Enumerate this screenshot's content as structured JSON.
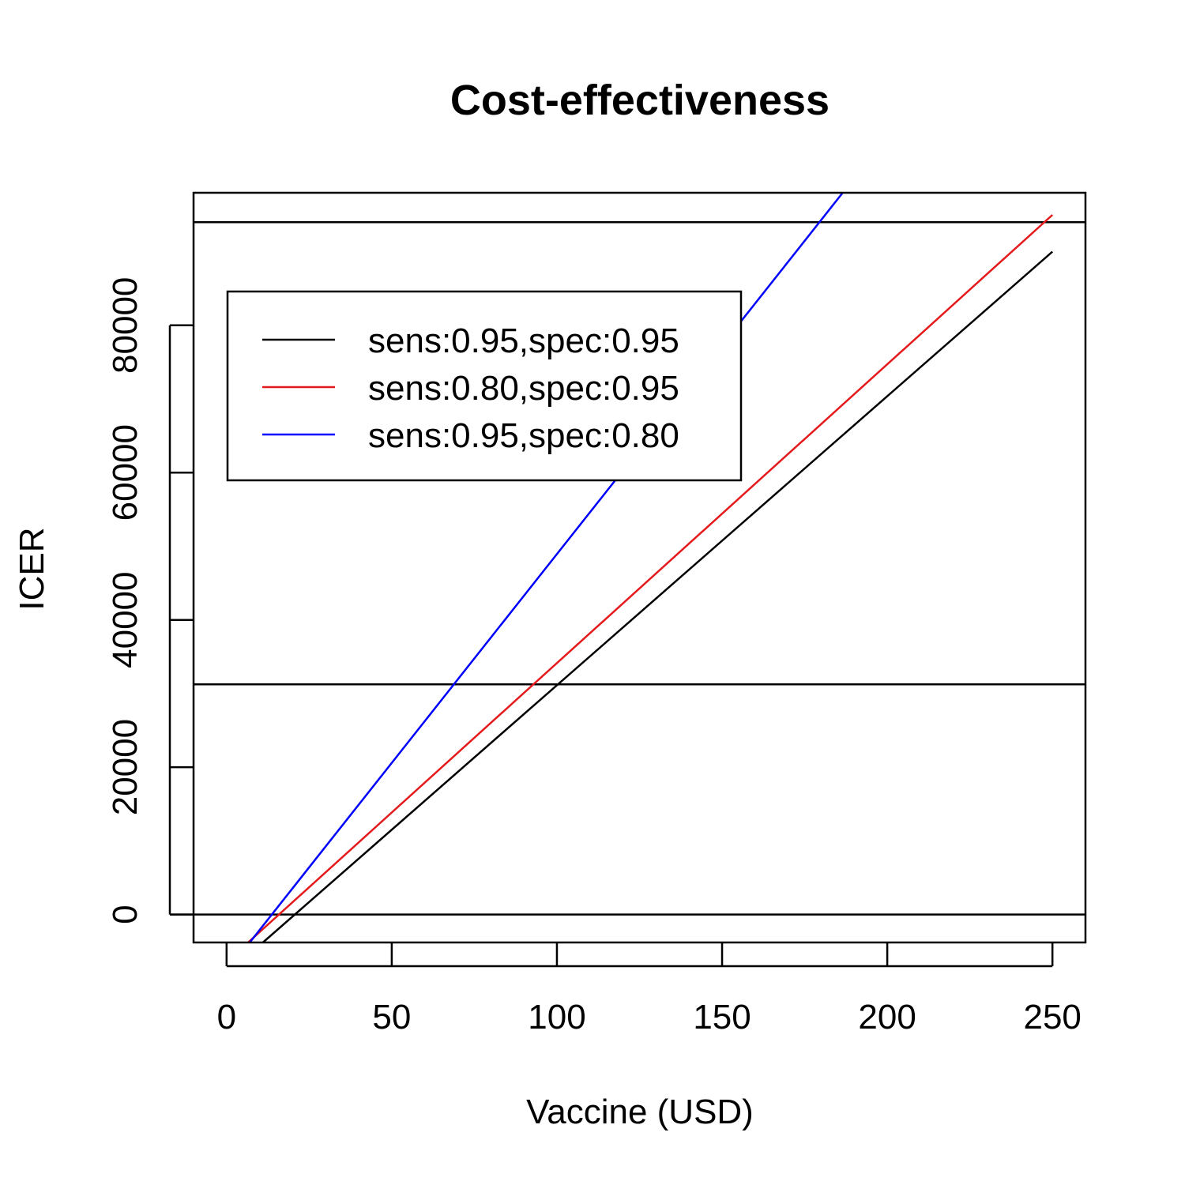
{
  "chart_data": {
    "type": "line",
    "title": "Cost-effectiveness",
    "xlabel": "Vaccine (USD)",
    "ylabel": "ICER",
    "xlim": [
      -10,
      260
    ],
    "ylim": [
      -3800,
      98000
    ],
    "x_ticks": [
      0,
      50,
      100,
      150,
      200,
      250
    ],
    "x_tick_labels": [
      "0",
      "50",
      "100",
      "150",
      "200",
      "250"
    ],
    "y_ticks": [
      0,
      20000,
      40000,
      60000,
      80000
    ],
    "y_tick_labels": [
      "0",
      "20000",
      "40000",
      "60000",
      "80000"
    ],
    "grid": false,
    "legend_position": "top-left",
    "series": [
      {
        "name": "sens:0.95,spec:0.95",
        "color": "#000000",
        "x": [
          11,
          250
        ],
        "y": [
          -3800,
          90000
        ]
      },
      {
        "name": "sens:0.80,spec:0.95",
        "color": "#e41a1c",
        "x": [
          6.5,
          250
        ],
        "y": [
          -3800,
          95000
        ]
      },
      {
        "name": "sens:0.95,spec:0.80",
        "color": "#0000ff",
        "x": [
          7,
          186.5
        ],
        "y": [
          -3800,
          98000
        ]
      }
    ],
    "reference_lines": [
      {
        "orientation": "horizontal",
        "y": 0,
        "color": "#000000"
      },
      {
        "orientation": "horizontal",
        "y": 31250,
        "color": "#000000"
      },
      {
        "orientation": "horizontal",
        "y": 94000,
        "color": "#000000"
      }
    ]
  }
}
